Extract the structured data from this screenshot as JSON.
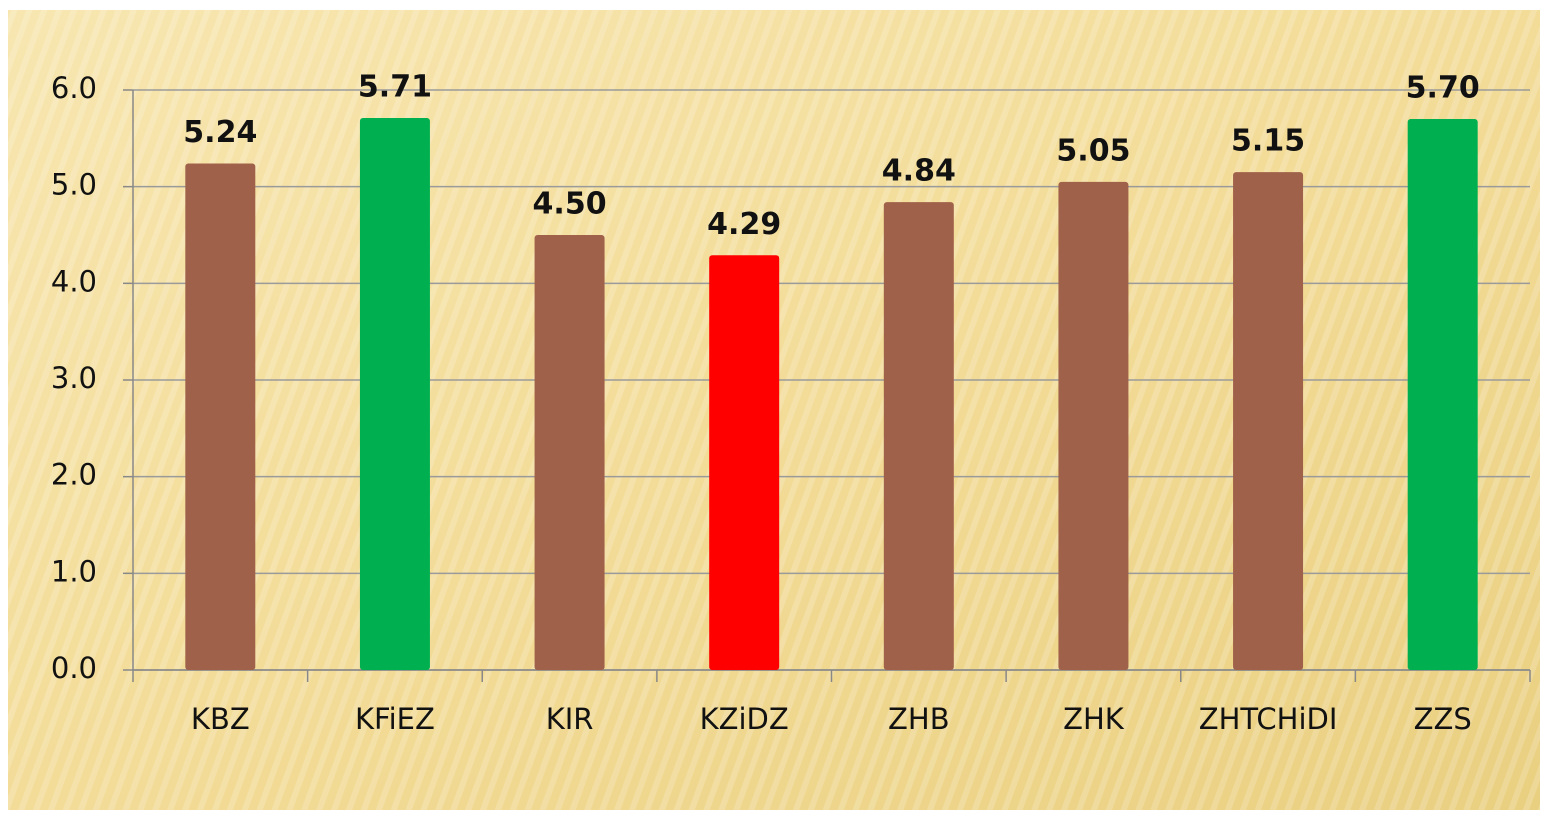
{
  "chart_data": {
    "type": "bar",
    "categories": [
      "KBZ",
      "KFiEZ",
      "KIR",
      "KZiDZ",
      "ZHB",
      "ZHK",
      "ZHTCHiDI",
      "ZZS"
    ],
    "values": [
      5.24,
      5.71,
      4.5,
      4.29,
      4.84,
      5.05,
      5.15,
      5.7
    ],
    "value_labels": [
      "5.24",
      "5.71",
      "4.50",
      "4.29",
      "4.84",
      "5.05",
      "5.15",
      "5.70"
    ],
    "colors": [
      "#a0614a",
      "#00b050",
      "#a0614a",
      "#ff0000",
      "#a0614a",
      "#a0614a",
      "#a0614a",
      "#00b050"
    ],
    "ylim": [
      0,
      6
    ],
    "yticks": [
      {
        "value": 0,
        "label": "0.0"
      },
      {
        "value": 1,
        "label": "1.0"
      },
      {
        "value": 2,
        "label": "2.0"
      },
      {
        "value": 3,
        "label": "3.0"
      },
      {
        "value": 4,
        "label": "4.0"
      },
      {
        "value": 5,
        "label": "5.0"
      },
      {
        "value": 6,
        "label": "6.0"
      }
    ],
    "grid": true
  }
}
